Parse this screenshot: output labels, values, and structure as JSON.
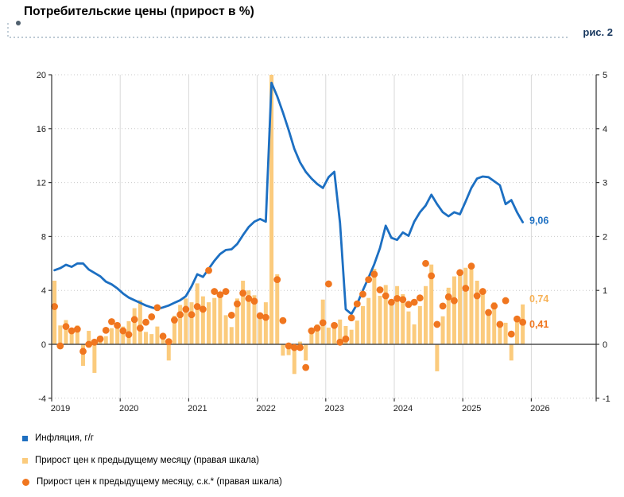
{
  "header": {
    "title": "Потребительские цены (прирост в %)",
    "figure_label": "рис. 2"
  },
  "legend": [
    {
      "label": "Инфляция, г/г",
      "marker": "square-icon",
      "color": "#1E6FC0"
    },
    {
      "label": "Прирост цен к предыдущему месяцу (правая шкала)",
      "marker": "square-icon",
      "color": "#FBCB7D"
    },
    {
      "label": "Прирост цен к предыдущему месяцу, с.к.* (правая шкала)",
      "marker": "circle-icon",
      "color": "#F0761F"
    }
  ],
  "colors": {
    "line": "#1C6FC2",
    "bar": "#FBCB7D",
    "dot": "#F0761F",
    "grid": "#C9C9C9",
    "year_grid": "#D9D9D9",
    "zero_line": "#4D4D4D",
    "axis": "#333333",
    "label_line": "#1C6FC2",
    "label_bar": "#F7B257",
    "label_dot": "#F0761F",
    "figure_navy": "#17375E",
    "callout_dash": "#A7B8C6",
    "callout_dot": "#50606E"
  },
  "chart_data": {
    "type": "composite",
    "x_start": "2019-01",
    "x_months": 83,
    "x_year_labels": [
      2019,
      2020,
      2021,
      2022,
      2023,
      2024,
      2025,
      2026
    ],
    "left_axis": {
      "ticks": [
        20,
        16,
        12,
        8,
        4,
        0,
        -4
      ],
      "range": [
        -4,
        20
      ]
    },
    "right_axis": {
      "ticks": [
        5,
        4,
        3,
        2,
        1,
        0,
        -1
      ],
      "range": [
        -1,
        5
      ]
    },
    "grid": "dotted-horizontal, solid-vertical-years",
    "legend_position": "bottom-left",
    "series": [
      {
        "name": "Инфляция, г/г",
        "type": "line",
        "axis": "left",
        "values": [
          5.5,
          5.65,
          5.9,
          5.75,
          6.0,
          6.0,
          5.55,
          5.3,
          5.05,
          4.65,
          4.45,
          4.15,
          3.77,
          3.47,
          3.27,
          3.08,
          2.88,
          2.74,
          2.62,
          2.74,
          2.88,
          3.08,
          3.27,
          3.57,
          4.3,
          5.2,
          5.0,
          5.6,
          6.2,
          6.7,
          7.0,
          7.05,
          7.45,
          8.1,
          8.7,
          9.1,
          9.3,
          9.1,
          19.4,
          18.4,
          17.2,
          15.9,
          14.5,
          13.5,
          12.8,
          12.3,
          11.9,
          11.6,
          12.4,
          12.8,
          9.0,
          2.6,
          2.25,
          3.0,
          4.0,
          4.95,
          5.95,
          7.15,
          8.8,
          7.9,
          7.75,
          8.3,
          8.05,
          9.1,
          9.8,
          10.3,
          11.1,
          10.4,
          9.8,
          9.5,
          9.8,
          9.65,
          10.6,
          11.6,
          12.3,
          12.45,
          12.4,
          12.1,
          11.8,
          10.4,
          10.7,
          9.8,
          9.06
        ]
      },
      {
        "name": "Прирост цен к предыдущему месяцу (правая шкала)",
        "type": "bar",
        "axis": "right",
        "values": [
          1.18,
          0.35,
          0.45,
          0.3,
          0.35,
          -0.4,
          0.25,
          -0.53,
          0.12,
          0.15,
          0.3,
          0.38,
          0.33,
          0.43,
          0.67,
          0.82,
          0.23,
          0.19,
          0.33,
          0.12,
          -0.3,
          0.53,
          0.73,
          0.85,
          0.78,
          1.13,
          0.89,
          0.78,
          0.86,
          0.91,
          0.54,
          0.32,
          0.85,
          1.18,
          1.0,
          0.91,
          0.5,
          0.78,
          5.0,
          1.3,
          -0.21,
          -0.2,
          -0.55,
          0.05,
          -0.3,
          0.2,
          0.37,
          0.83,
          0.31,
          0.39,
          0.46,
          0.34,
          0.27,
          0.44,
          0.71,
          0.86,
          1.4,
          0.9,
          1.1,
          0.78,
          1.08,
          0.93,
          0.61,
          0.37,
          0.71,
          1.08,
          1.48,
          -0.5,
          0.52,
          1.05,
          1.26,
          1.3,
          1.42,
          1.5,
          1.18,
          1.03,
          0.61,
          0.78,
          0.41,
          0.4,
          -0.3,
          0.49,
          0.74
        ]
      },
      {
        "name": "Прирост цен к предыдущему месяцу, с.к.* (правая шкала)",
        "type": "scatter",
        "axis": "right",
        "values": [
          0.7,
          -0.03,
          0.33,
          0.25,
          0.28,
          -0.13,
          0.0,
          0.04,
          0.1,
          0.26,
          0.42,
          0.35,
          0.25,
          0.18,
          0.46,
          0.3,
          0.41,
          0.51,
          0.68,
          0.15,
          0.05,
          0.45,
          0.55,
          0.65,
          0.55,
          0.7,
          0.65,
          1.37,
          0.98,
          0.92,
          0.98,
          0.54,
          0.75,
          0.95,
          0.85,
          0.8,
          0.53,
          0.5,
          null,
          1.2,
          0.44,
          -0.03,
          -0.06,
          -0.06,
          -0.43,
          0.25,
          0.3,
          0.4,
          1.12,
          0.35,
          0.04,
          0.1,
          0.49,
          0.75,
          0.93,
          1.2,
          1.3,
          1.01,
          0.9,
          0.78,
          0.85,
          0.83,
          0.74,
          0.78,
          0.86,
          1.5,
          1.27,
          0.37,
          0.71,
          0.88,
          0.81,
          1.33,
          1.04,
          1.45,
          0.9,
          0.98,
          0.59,
          0.71,
          0.37,
          0.81,
          0.19,
          0.47,
          0.41
        ]
      }
    ],
    "end_labels": [
      {
        "text": "9,06",
        "series": "line"
      },
      {
        "text": "0,74",
        "series": "bar"
      },
      {
        "text": "0,41",
        "series": "scatter"
      }
    ]
  }
}
